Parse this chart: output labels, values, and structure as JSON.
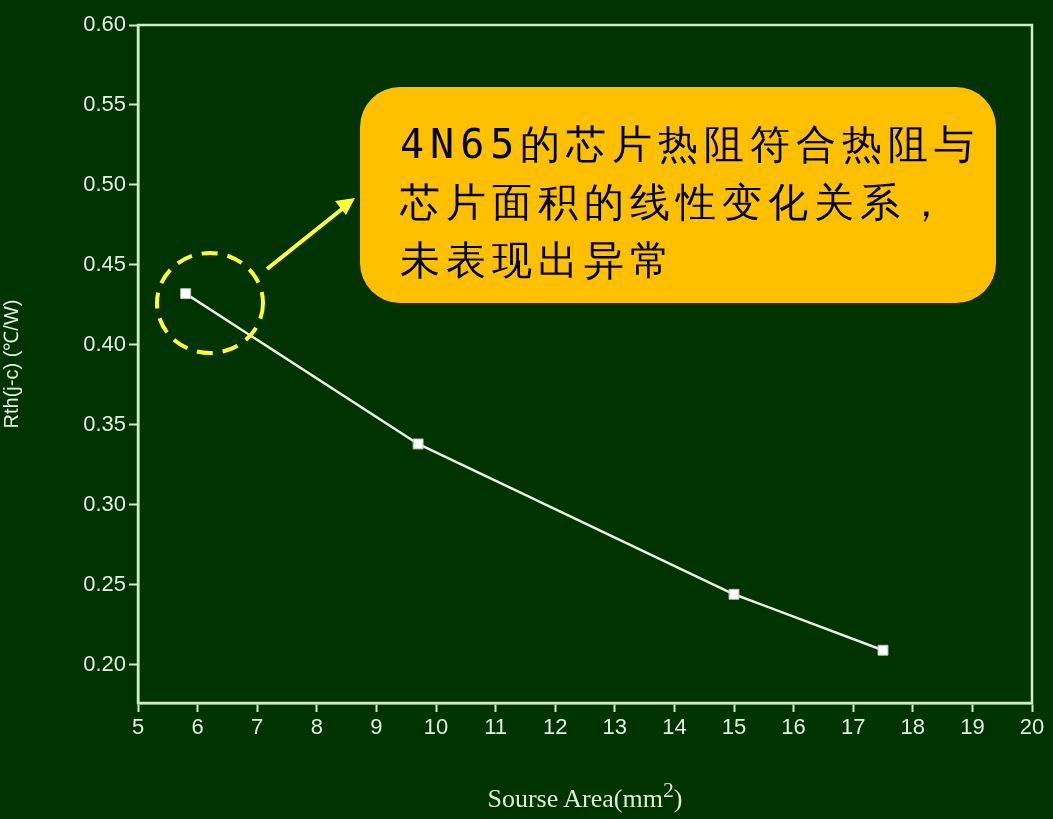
{
  "chart_data": {
    "type": "line",
    "xlabel": "Sourse Area(mm$^{2}$)",
    "ylabel": "Rth(j-c) (℃/W)",
    "x": [
      5.8,
      9.7,
      15.0,
      17.5
    ],
    "series": [
      {
        "color": "#e8f5e0",
        "values": [
          0.432,
          0.338,
          0.244,
          0.209
        ]
      }
    ],
    "xlim": [
      5,
      20
    ],
    "xticks": [
      5,
      6,
      7,
      8,
      9,
      10,
      11,
      12,
      13,
      14,
      15,
      16,
      17,
      18,
      19,
      20
    ],
    "ylim": [
      0.176,
      0.6
    ],
    "yticks": [
      {
        "value": 0.2,
        "label": "0.20"
      },
      {
        "value": 0.25,
        "label": "0.25"
      },
      {
        "value": 0.3,
        "label": "0.30"
      },
      {
        "value": 0.35,
        "label": "0.35"
      },
      {
        "value": 0.4,
        "label": "0.40"
      },
      {
        "value": 0.45,
        "label": "0.45"
      },
      {
        "value": 0.5,
        "label": "0.50"
      },
      {
        "value": 0.55,
        "label": "0.55"
      },
      {
        "value": 0.6,
        "label": "0.60"
      }
    ],
    "grid": false,
    "legend": false,
    "marker": "square",
    "line_style": "solid",
    "annotations": [
      "4N65的芯片热阻符合热阻与芯片面积的线性变化关系，未表现出异常"
    ]
  }
}
